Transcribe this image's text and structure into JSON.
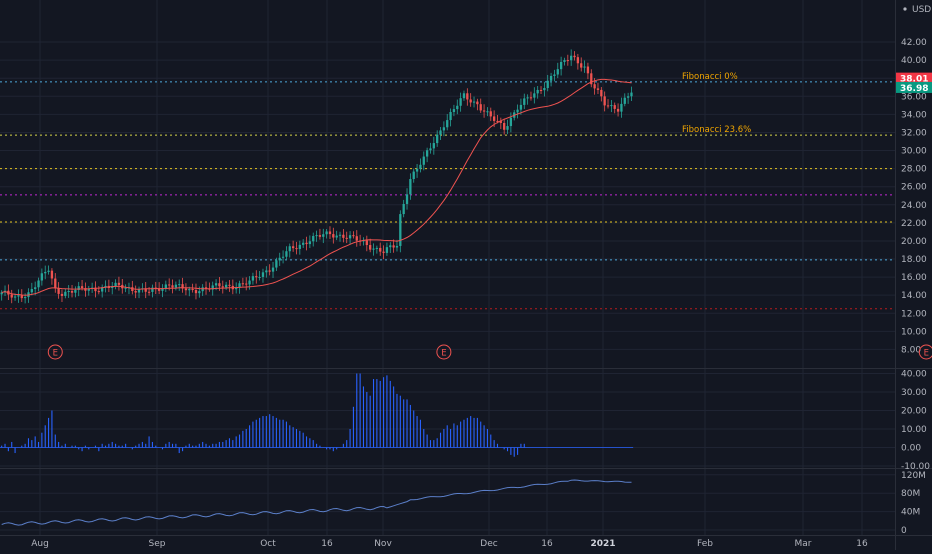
{
  "currency_label": "USD",
  "chart_data": {
    "type": "candlestick",
    "x_tick_labels": [
      "Aug",
      "Sep",
      "Oct",
      "16",
      "Nov",
      "Dec",
      "16",
      "2021",
      "Feb",
      "Mar",
      "16"
    ],
    "price_axis": {
      "ylim": [
        6,
        43
      ],
      "tick_labels": [
        "8.00",
        "10.00",
        "12.00",
        "14.00",
        "16.00",
        "18.00",
        "20.00",
        "22.00",
        "24.00",
        "26.00",
        "28.00",
        "30.00",
        "32.00",
        "34.00",
        "36.00",
        "38.00",
        "40.00",
        "42.00"
      ],
      "tick_values": [
        8,
        10,
        12,
        14,
        16,
        18,
        20,
        22,
        24,
        26,
        28,
        30,
        32,
        34,
        36,
        38,
        40,
        42
      ]
    },
    "price_badges": [
      {
        "text": "38.01",
        "value": 38.01,
        "color": "#f23645"
      },
      {
        "text": "36.98",
        "value": 36.98,
        "color": "#089981"
      }
    ],
    "horizontal_levels": [
      {
        "value": 37.6,
        "color": "#4da8da",
        "label": "Fibonacci 0%"
      },
      {
        "value": 31.7,
        "color": "#d5d54a",
        "label": "Fibonacci 23.6%"
      },
      {
        "value": 28.0,
        "color": "#e6c320",
        "label": ""
      },
      {
        "value": 25.1,
        "color": "#c026d3",
        "label": ""
      },
      {
        "value": 22.1,
        "color": "#e6c320",
        "label": ""
      },
      {
        "value": 17.9,
        "color": "#4da8da",
        "label": ""
      },
      {
        "value": 12.5,
        "color": "#b71c1c",
        "label": ""
      }
    ],
    "earnings_markers": [
      {
        "label": "E",
        "x_index": 16
      },
      {
        "label": "E",
        "x_index": 132
      },
      {
        "label": "E",
        "x_index": 276
      }
    ],
    "candles": [],
    "moving_average_color": "#ef5350",
    "oscillator_panel": {
      "ylim": [
        -12,
        42
      ],
      "tick_labels": [
        "40.00",
        "30.00",
        "20.00",
        "10.00",
        "0.00",
        "-10.00"
      ],
      "tick_values": [
        40,
        30,
        20,
        10,
        0,
        -10
      ],
      "values": [
        1,
        2,
        -2,
        3,
        -3,
        0,
        1,
        2,
        5,
        4,
        6,
        3,
        8,
        12,
        16,
        20,
        7,
        3,
        1,
        2,
        0,
        1,
        1,
        -1,
        -2,
        1,
        -1,
        0,
        1,
        -2,
        2,
        1,
        2,
        3,
        2,
        1,
        1,
        2,
        0,
        -1,
        1,
        2,
        3,
        2,
        6,
        3,
        1,
        0,
        -1,
        2,
        3,
        2,
        2,
        -3,
        -2,
        1,
        2,
        1,
        1,
        2,
        3,
        2,
        1,
        2,
        2,
        3,
        3,
        4,
        5,
        4,
        6,
        7,
        9,
        10,
        12,
        14,
        15,
        16,
        17,
        17,
        18,
        17,
        16,
        15,
        15,
        14,
        12,
        11,
        10,
        9,
        8,
        6,
        5,
        4,
        2,
        1,
        0,
        -1,
        -1,
        -2,
        -1,
        0,
        2,
        4,
        10,
        22,
        40,
        40,
        33,
        30,
        28,
        37,
        37,
        36,
        38,
        39,
        36,
        33,
        29,
        28,
        26,
        26,
        23,
        20,
        17,
        15,
        10,
        7,
        4,
        4,
        5,
        8,
        10,
        12,
        10,
        13,
        12,
        14,
        15,
        16,
        17,
        16,
        16,
        14,
        12,
        10,
        7,
        4,
        2,
        0,
        -1,
        -2,
        -4,
        -5,
        -4,
        2,
        2
      ],
      "color": "#2962ff"
    },
    "volume_panel": {
      "ylim": [
        -10,
        128
      ],
      "tick_labels": [
        "120M",
        "80M",
        "40M",
        "0"
      ],
      "tick_values": [
        120,
        80,
        40,
        0
      ],
      "color": "#5b7fc9"
    }
  }
}
